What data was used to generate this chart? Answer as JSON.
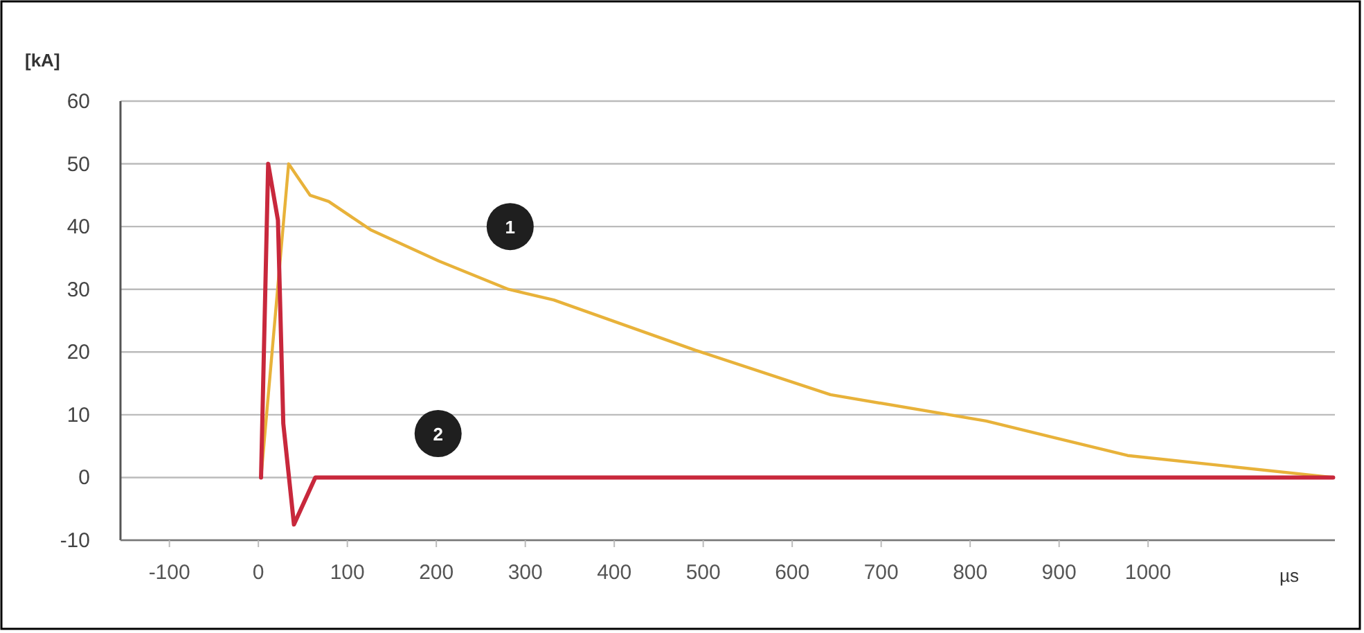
{
  "chart_data": {
    "type": "line",
    "ylabel": "[kA]",
    "xlabel": "µs",
    "xlim": [
      -155,
      1210
    ],
    "ylim": [
      -10,
      60
    ],
    "xticks": [
      -100,
      0,
      100,
      200,
      300,
      400,
      500,
      600,
      700,
      800,
      900,
      1000
    ],
    "yticks": [
      -10,
      0,
      10,
      20,
      30,
      40,
      50,
      60
    ],
    "grid": "y",
    "marker": "none",
    "line_style": "solid",
    "series": [
      {
        "color": "#e8b23a",
        "x": [
          3,
          34,
          58,
          79,
          126,
          203,
          281,
          332,
          491,
          643,
          818,
          977,
          1208
        ],
        "values": [
          0,
          50,
          45,
          44,
          39.5,
          34.5,
          30,
          28.3,
          20.3,
          13.2,
          9,
          3.5,
          0
        ]
      },
      {
        "color": "#c8283c",
        "x": [
          3,
          11,
          22,
          28,
          40,
          64,
          1208
        ],
        "values": [
          0,
          50,
          41,
          8.6,
          -7.5,
          0,
          0
        ]
      }
    ],
    "annotations": [
      {
        "text": "1",
        "x": 283,
        "y": 40
      },
      {
        "text": "2",
        "x": 202,
        "y": 7
      }
    ]
  }
}
